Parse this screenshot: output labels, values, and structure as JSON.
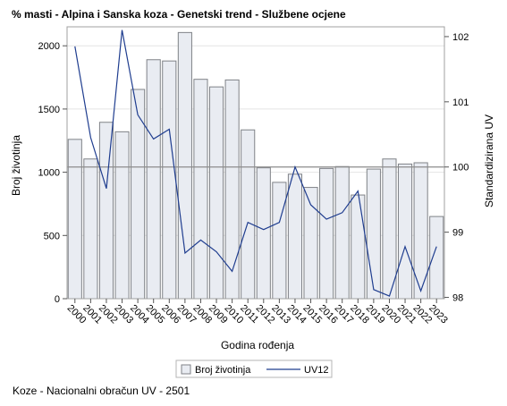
{
  "title": "% masti - Alpina i Sanska koza - Genetski trend - Službene ocjene",
  "footer": "Koze - Nacionalni obračun UV - 2501",
  "colors": {
    "bar_fill": "#e9ecf2",
    "bar_stroke": "#7f8287",
    "line": "#1f3d8f",
    "frame": "#a0a0a0",
    "grid": "#e4e4e4",
    "baseline": "#8c8c8c"
  },
  "chart_data": {
    "type": "bar",
    "xlabel": "Godina rođenja",
    "ylabel": "Broj životinja",
    "y2label": "Standardizirana UV",
    "ylim": [
      0,
      2150
    ],
    "y2lim": [
      97.98,
      102.15
    ],
    "yticks": [
      0,
      500,
      1000,
      1500,
      2000
    ],
    "y2ticks": [
      98,
      99,
      100,
      101,
      102
    ],
    "y2_reference": 100,
    "grid": true,
    "legend_position": "bottom",
    "categories": [
      "2000",
      "2001",
      "2002",
      "2003",
      "2004",
      "2005",
      "2006",
      "2007",
      "2008",
      "2009",
      "2010",
      "2011",
      "2012",
      "2013",
      "2014",
      "2015",
      "2016",
      "2017",
      "2018",
      "2019",
      "2020",
      "2021",
      "2022",
      "2023"
    ],
    "series": [
      {
        "name": "Broj životinja",
        "axis": "left",
        "type": "bar",
        "values": [
          1260,
          1105,
          1395,
          1320,
          1655,
          1890,
          1880,
          2105,
          1735,
          1675,
          1730,
          1335,
          1035,
          920,
          985,
          880,
          1030,
          1045,
          820,
          1025,
          1105,
          1065,
          1075,
          650
        ]
      },
      {
        "name": "UV12",
        "axis": "right",
        "type": "line",
        "values": [
          101.85,
          100.45,
          99.67,
          102.1,
          100.8,
          100.43,
          100.58,
          98.68,
          98.88,
          98.7,
          98.4,
          99.15,
          99.04,
          99.15,
          100.0,
          99.42,
          99.2,
          99.3,
          99.63,
          98.12,
          98.02,
          98.78,
          98.1,
          98.78
        ]
      }
    ]
  }
}
